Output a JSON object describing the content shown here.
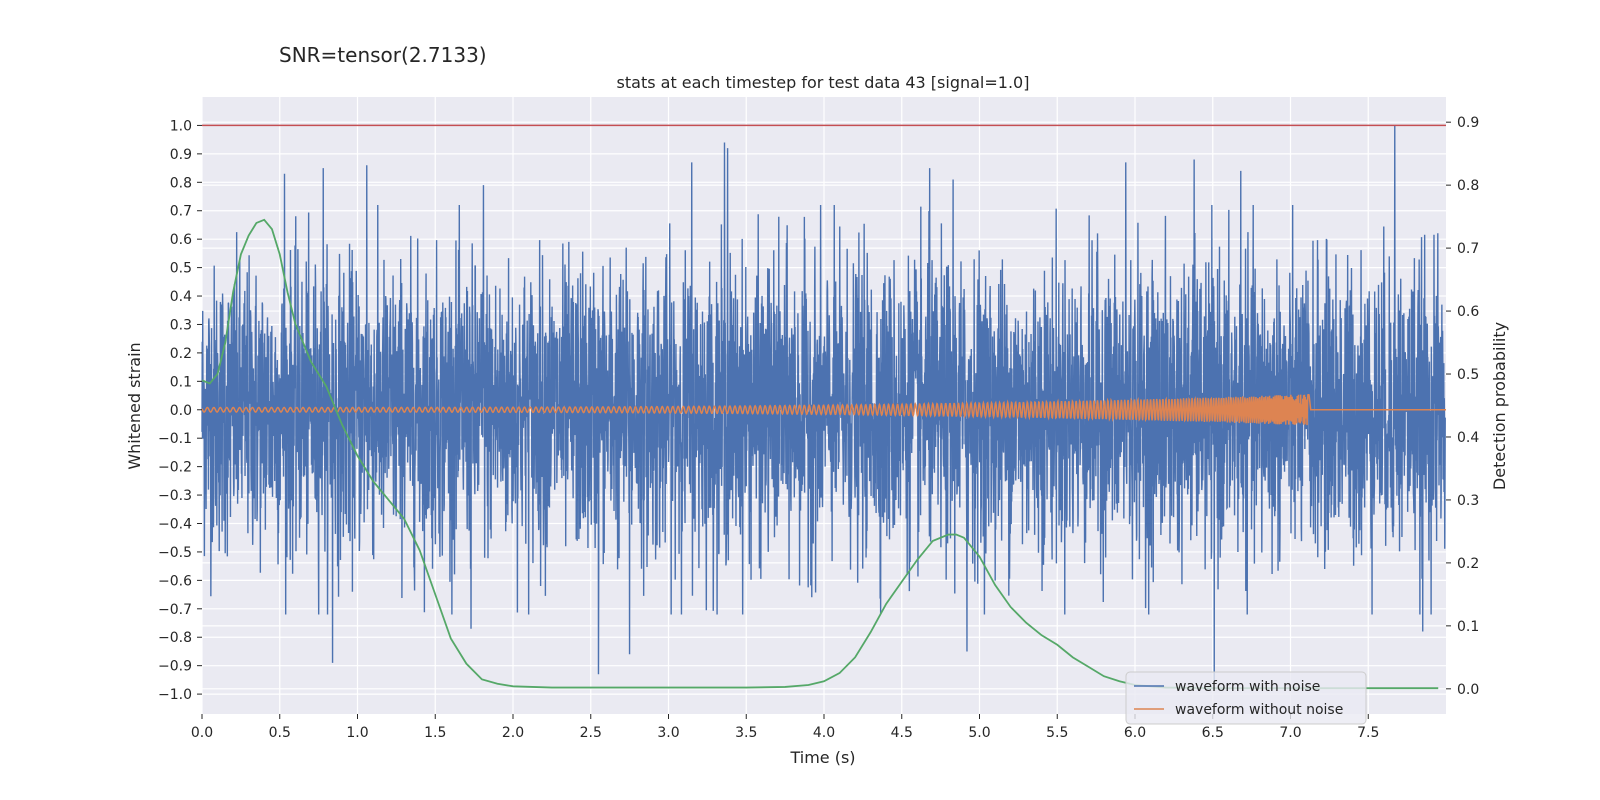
{
  "suptitle": "SNR=tensor(2.7133)",
  "chart_data": {
    "type": "line",
    "title": "stats at each timestep for test data 43 [signal=1.0]",
    "xlabel": "Time (s)",
    "ylabel": "Whitened strain",
    "y2label": "Detection probability",
    "xlim": [
      0.0,
      8.0
    ],
    "ylim": [
      -1.07,
      1.1
    ],
    "y2lim": [
      -0.04,
      0.94
    ],
    "xticks": [
      "0.0",
      "0.5",
      "1.0",
      "1.5",
      "2.0",
      "2.5",
      "3.0",
      "3.5",
      "4.0",
      "4.5",
      "5.0",
      "5.5",
      "6.0",
      "6.5",
      "7.0",
      "7.5"
    ],
    "yticks": [
      "1.0",
      "0.9",
      "0.8",
      "0.7",
      "0.6",
      "0.5",
      "0.4",
      "0.3",
      "0.2",
      "0.1",
      "0.0",
      "−0.1",
      "−0.2",
      "−0.3",
      "−0.4",
      "−0.5",
      "−0.6",
      "−0.7",
      "−0.8",
      "−0.9",
      "−1.0"
    ],
    "y2ticks": [
      "0.9",
      "0.8",
      "0.7",
      "0.6",
      "0.5",
      "0.4",
      "0.3",
      "0.2",
      "0.1",
      "0.0"
    ],
    "grid": true,
    "legend_position": "lower-right",
    "threshold": {
      "y": 1.0,
      "color": "#c44e52"
    },
    "series": [
      {
        "name": "waveform with noise",
        "color": "#4c72b0",
        "axis": "left",
        "noise_envelope": {
          "typical_abs_max": 0.55,
          "peaks": [
            {
              "x": 0.53,
              "y": 0.83
            },
            {
              "x": 0.78,
              "y": 0.85
            },
            {
              "x": 1.06,
              "y": 0.86
            },
            {
              "x": 1.81,
              "y": 0.79
            },
            {
              "x": 3.15,
              "y": 0.87
            },
            {
              "x": 3.36,
              "y": 0.94
            },
            {
              "x": 3.38,
              "y": 0.92
            },
            {
              "x": 4.68,
              "y": 0.85
            },
            {
              "x": 4.83,
              "y": 0.81
            },
            {
              "x": 5.94,
              "y": 0.87
            },
            {
              "x": 6.38,
              "y": 0.88
            },
            {
              "x": 6.68,
              "y": 0.84
            },
            {
              "x": 7.67,
              "y": 1.0
            },
            {
              "x": 0.84,
              "y": -0.89
            },
            {
              "x": 2.55,
              "y": -0.93
            },
            {
              "x": 2.75,
              "y": -0.86
            },
            {
              "x": 4.92,
              "y": -0.85
            },
            {
              "x": 6.51,
              "y": -0.96
            },
            {
              "x": 1.73,
              "y": -0.77
            },
            {
              "x": 7.85,
              "y": -0.78
            }
          ]
        }
      },
      {
        "name": "waveform without noise",
        "color": "#dd8452",
        "axis": "left",
        "chirp": {
          "start": 0.0,
          "merger": 7.12,
          "amplitude_start": 0.008,
          "amplitude_merger": 0.055
        }
      },
      {
        "name": "detection probability",
        "color": "#55a868",
        "axis": "right",
        "x": [
          0.0,
          0.05,
          0.1,
          0.15,
          0.2,
          0.25,
          0.3,
          0.35,
          0.4,
          0.45,
          0.5,
          0.55,
          0.6,
          0.65,
          0.7,
          0.8,
          0.9,
          1.0,
          1.1,
          1.2,
          1.3,
          1.4,
          1.5,
          1.6,
          1.7,
          1.8,
          1.9,
          2.0,
          2.25,
          2.5,
          3.0,
          3.5,
          3.75,
          3.9,
          4.0,
          4.1,
          4.2,
          4.3,
          4.4,
          4.5,
          4.6,
          4.7,
          4.8,
          4.85,
          4.9,
          5.0,
          5.1,
          5.2,
          5.3,
          5.4,
          5.5,
          5.6,
          5.7,
          5.8,
          5.9,
          6.0,
          6.2,
          6.5,
          7.0,
          7.5,
          7.95
        ],
        "y": [
          0.49,
          0.485,
          0.5,
          0.55,
          0.63,
          0.69,
          0.72,
          0.74,
          0.745,
          0.73,
          0.69,
          0.63,
          0.58,
          0.55,
          0.52,
          0.48,
          0.42,
          0.37,
          0.33,
          0.3,
          0.27,
          0.22,
          0.15,
          0.08,
          0.04,
          0.015,
          0.008,
          0.004,
          0.002,
          0.002,
          0.002,
          0.002,
          0.003,
          0.006,
          0.012,
          0.025,
          0.05,
          0.09,
          0.135,
          0.17,
          0.205,
          0.235,
          0.245,
          0.245,
          0.24,
          0.21,
          0.165,
          0.13,
          0.105,
          0.085,
          0.07,
          0.05,
          0.035,
          0.02,
          0.012,
          0.006,
          0.002,
          0.001,
          0.001,
          0.001,
          0.001
        ]
      }
    ]
  }
}
